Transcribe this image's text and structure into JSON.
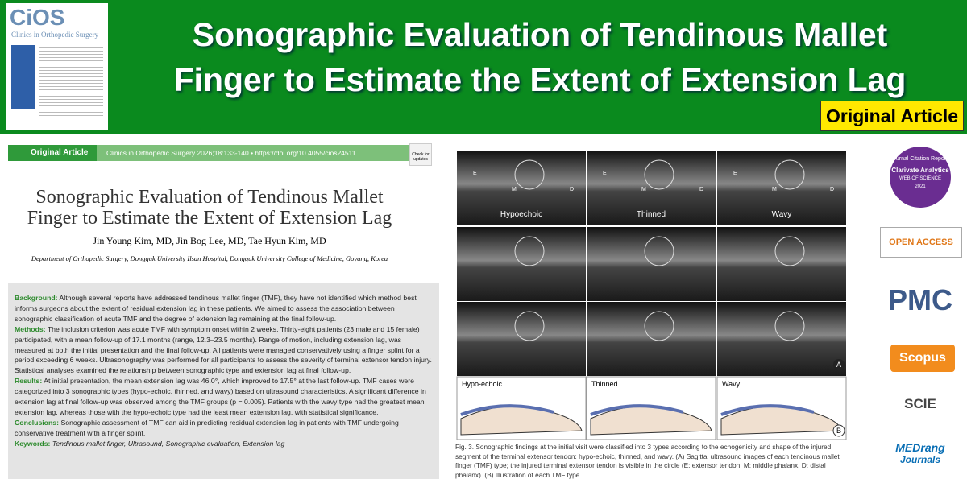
{
  "cover": {
    "logo": "CiOS",
    "subtitle": "Clinics in Orthopedic Surgery"
  },
  "header": {
    "title_line1": "Sonographic Evaluation of Tendinous Mallet",
    "title_line2": "Finger to Estimate the Extent of Extension Lag",
    "badge": "Original Article"
  },
  "article": {
    "type": "Original Article",
    "citation": "Clinics in Orthopedic Surgery 2026;18:133-140 • https://doi.org/10.4055/cios24511",
    "check_updates": "Check for updates",
    "title_line1": "Sonographic Evaluation of Tendinous Mallet",
    "title_line2": "Finger to Estimate the Extent of Extension Lag",
    "authors": "Jin Young Kim, MD, Jin Bog Lee, MD, Tae Hyun Kim, MD",
    "affiliation": "Department of Orthopedic Surgery, Dongguk University Ilsan Hospital, Dongguk University College of Medicine, Goyang, Korea"
  },
  "abstract": [
    {
      "label": "Background:",
      "text": "Although several reports have addressed tendinous mallet finger (TMF), they have not identified which method best informs surgeons about the extent of residual extension lag in these patients. We aimed to assess the association between sonographic classification of acute TMF and the degree of extension lag remaining at the final follow-up."
    },
    {
      "label": "Methods:",
      "text": "The inclusion criterion was acute TMF with symptom onset within 2 weeks. Thirty-eight patients (23 male and 15 female) participated, with a mean follow-up of 17.1 months (range, 12.3–23.5 months). Range of motion, including extension lag, was measured at both the initial presentation and the final follow-up. All patients were managed conservatively using a finger splint for a period exceeding 6 weeks. Ultrasonography was performed for all participants to assess the severity of terminal extensor tendon injury. Statistical analyses examined the relationship between sonographic type and extension lag at final follow-up."
    },
    {
      "label": "Results:",
      "text": "At initial presentation, the mean extension lag was 46.0°, which improved to 17.5° at the last follow-up. TMF cases were categorized into 3 sonographic types (hypo-echoic, thinned, and wavy) based on ultrasound characteristics. A significant difference in extension lag at final follow-up was observed among the TMF groups (p = 0.005). Patients with the wavy type had the greatest mean extension lag, whereas those with the hypo-echoic type had the least mean extension lag, with statistical significance."
    },
    {
      "label": "Conclusions:",
      "text": "Sonographic assessment of TMF can aid in predicting residual extension lag in patients with TMF undergoing conservative treatment with a finger splint."
    },
    {
      "label": "Keywords:",
      "text": "Tendinous mallet finger, Ultrasound, Sonographic evaluation, Extension lag"
    }
  ],
  "figure": {
    "column_labels": [
      "Hypoechoic",
      "Thinned",
      "Wavy"
    ],
    "structure_labels": [
      "E",
      "M",
      "D"
    ],
    "panel_a": "A",
    "panel_b": "B",
    "illustration_labels": [
      "Hypo-echoic",
      "Thinned",
      "Wavy"
    ],
    "caption": "Fig. 3. Sonographic findings at the initial visit were classified into 3 types according to the echogenicity and shape of the injured segment of the terminal extensor tendon: hypo-echoic, thinned, and wavy. (A) Sagittal ultrasound images of each tendinous mallet finger (TMF) type; the injured terminal extensor tendon is visible in the circle (E: extensor tendon, M: middle phalanx, D: distal phalanx). (B) Illustration of each TMF type."
  },
  "logos": {
    "jcr": "Journal Citation Reports",
    "clarivate": "Clarivate Analytics",
    "wos": "WEB OF SCIENCE",
    "year": "2021",
    "open_access": "OPEN ACCESS",
    "pmc": "PMC",
    "scopus": "Scopus",
    "scie": "SCIE",
    "medrang": "MEDrang",
    "journals": "Journals"
  }
}
